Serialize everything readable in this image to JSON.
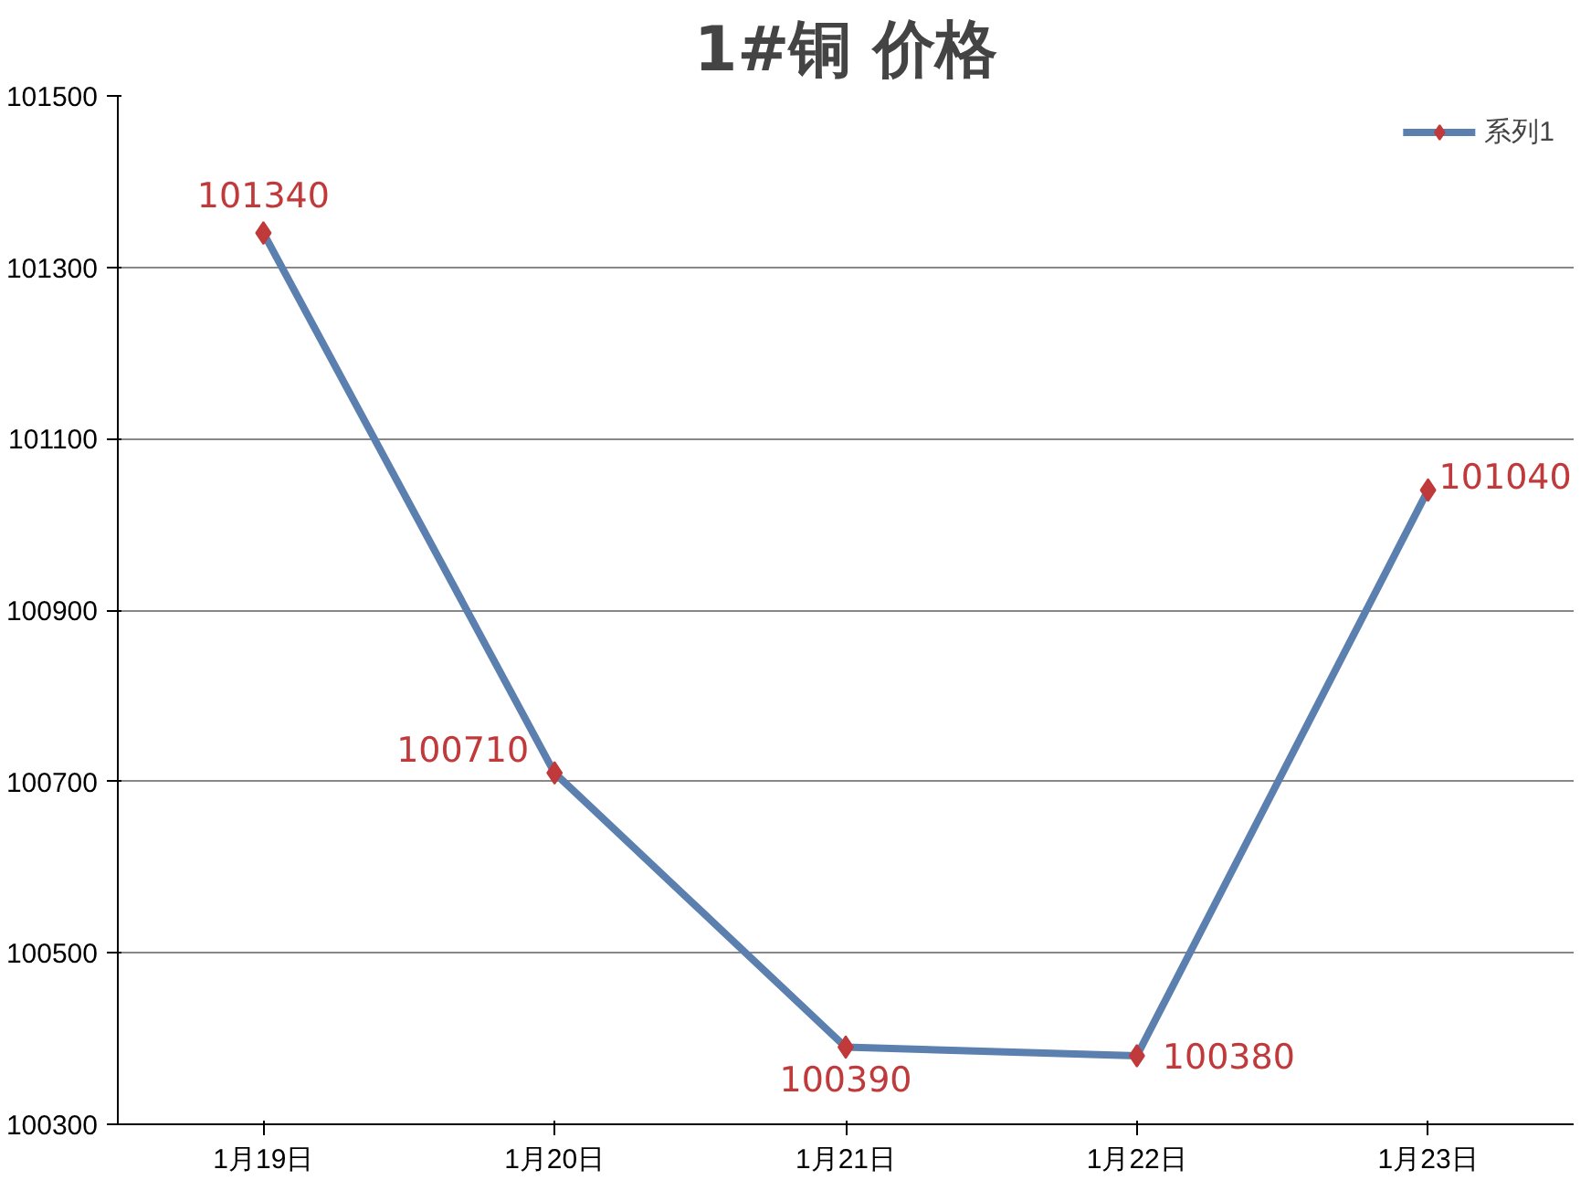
{
  "chart_data": {
    "type": "line",
    "title": "1#铜 价格",
    "categories": [
      "1月19日",
      "1月20日",
      "1月21日",
      "1月22日",
      "1月23日"
    ],
    "series": [
      {
        "name": "系列1",
        "color": "#5b7fae",
        "values": [
          101340,
          100710,
          100390,
          100380,
          101040
        ]
      }
    ],
    "marker": "diamond",
    "ylim": [
      100300,
      101500
    ],
    "yticks": [
      100300,
      100500,
      100700,
      100900,
      101100,
      101300,
      101500
    ],
    "grid": "y",
    "legend": "top right",
    "data_labels": true
  }
}
